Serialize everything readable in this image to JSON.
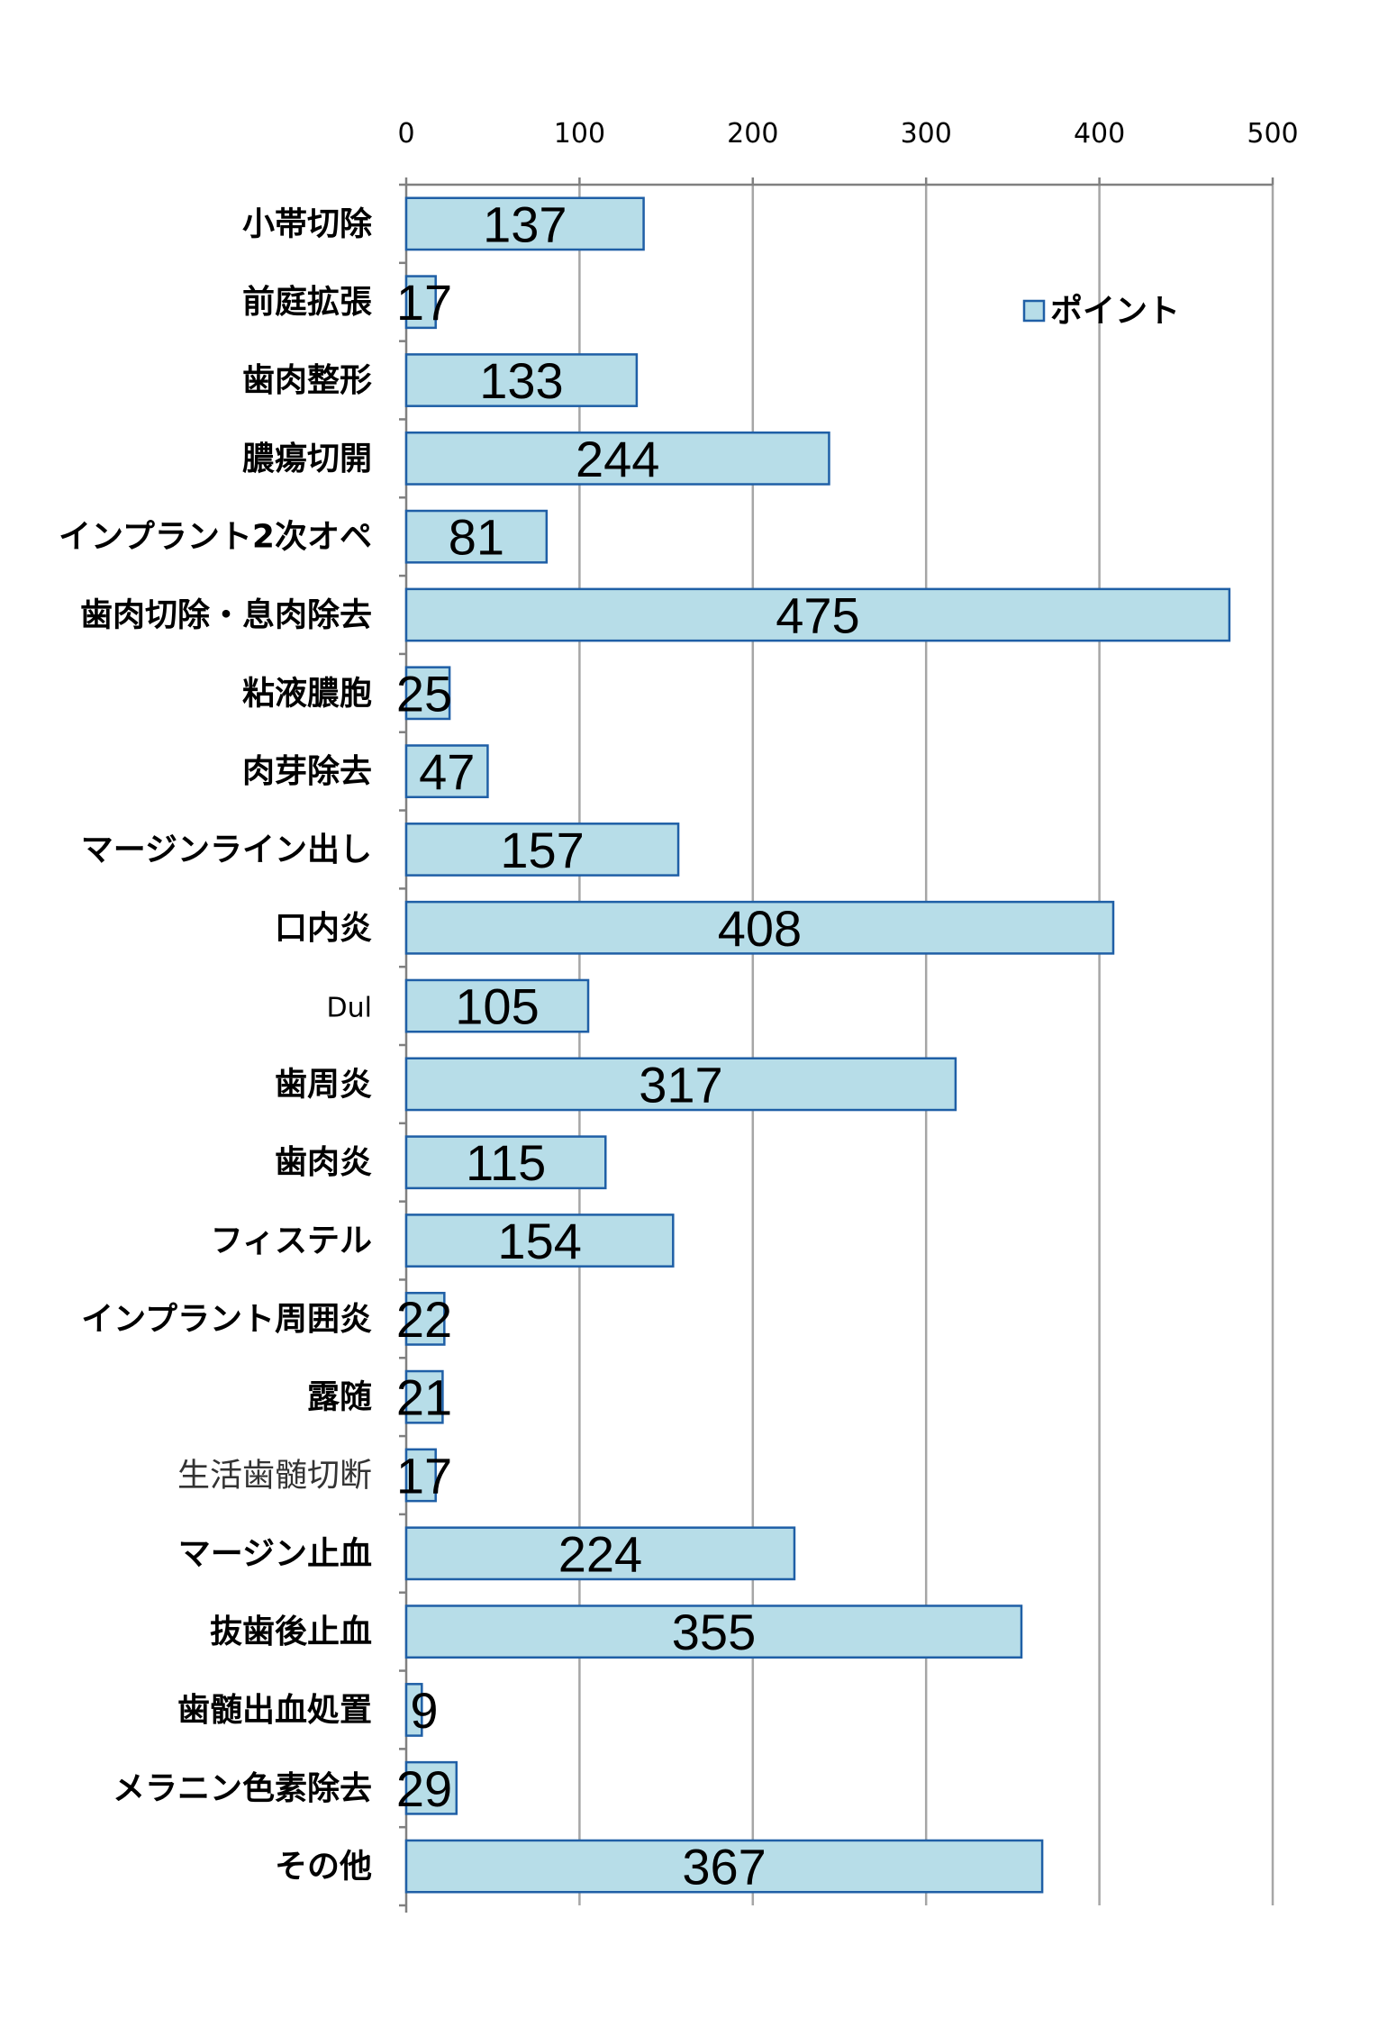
{
  "chart_data": {
    "type": "bar",
    "orientation": "horizontal",
    "categories": [
      "小帯切除",
      "前庭拡張",
      "歯肉整形",
      "膿瘍切開",
      "インプラント2次オペ",
      "歯肉切除・息肉除去",
      "粘液膿胞",
      "肉芽除去",
      "マージンライン出し",
      "口内炎",
      "Dul",
      "歯周炎",
      "歯肉炎",
      "フィステル",
      "インプラント周囲炎",
      "露随",
      "生活歯髄切断",
      "マージン止血",
      "抜歯後止血",
      "歯髄出血処置",
      "メラニン色素除去",
      "その他"
    ],
    "series": [
      {
        "name": "ポイント",
        "values": [
          137,
          17,
          133,
          244,
          81,
          475,
          25,
          47,
          157,
          408,
          105,
          317,
          115,
          154,
          22,
          21,
          17,
          224,
          355,
          9,
          29,
          367
        ]
      }
    ],
    "xlim": [
      0,
      500
    ],
    "x_ticks": [
      "0",
      "100",
      "200",
      "300",
      "400",
      "500"
    ],
    "x_axis_position": "top",
    "grid": true,
    "legend_position": "top-right",
    "colors": {
      "bar_fill": "#b7dde8",
      "bar_stroke": "#1f5fa6",
      "grid": "#a6a6a6",
      "axis": "#808080"
    }
  }
}
